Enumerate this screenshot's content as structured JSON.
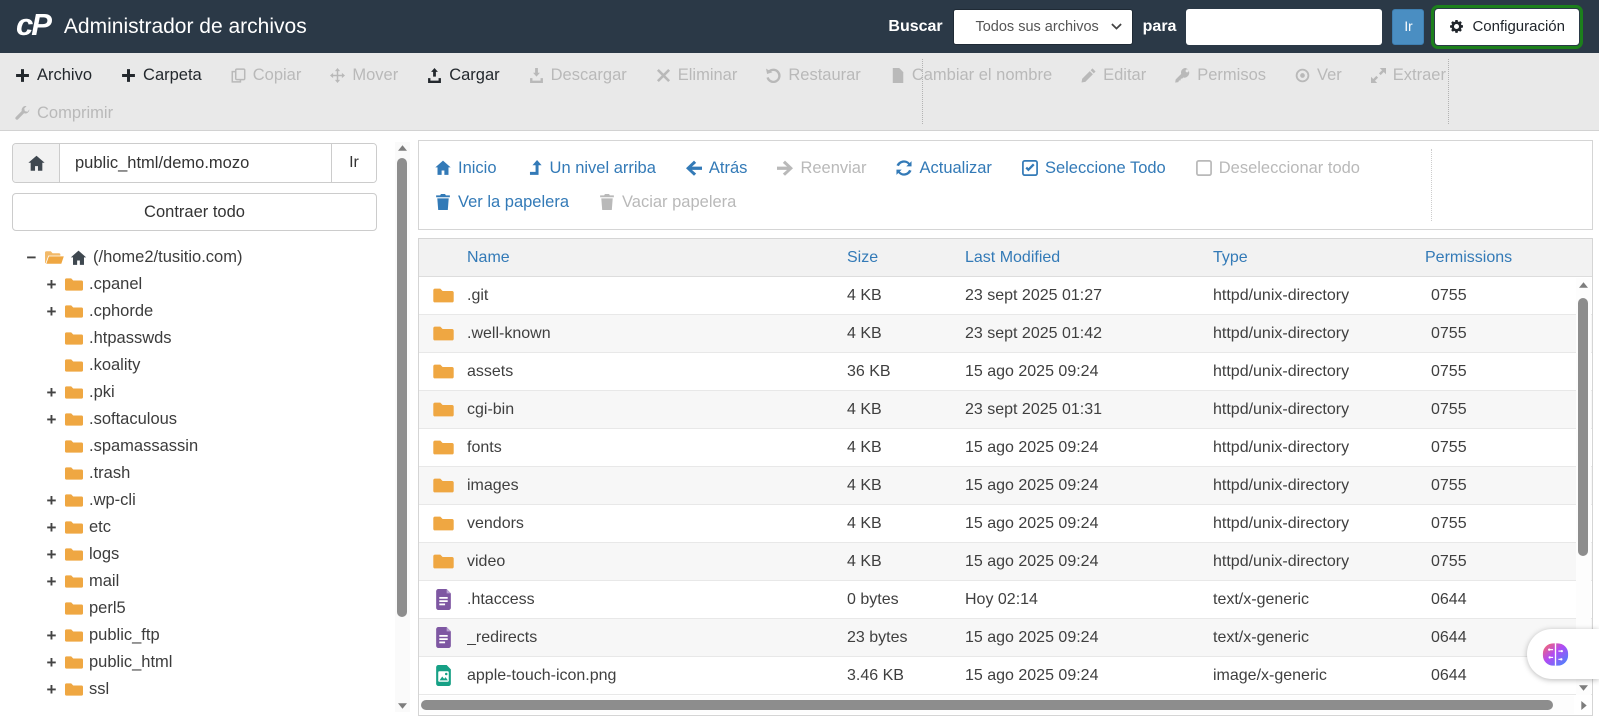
{
  "header": {
    "logo_text": "cP",
    "title": "Administrador de archivos",
    "search_label": "Buscar",
    "search_scope_selected": "Todos sus archivos",
    "search_connector": "para",
    "search_value": "",
    "go_label": "Ir",
    "settings_label": "Configuración"
  },
  "toolbar": {
    "row1": [
      {
        "label": "Archivo",
        "icon": "plus",
        "enabled": true
      },
      {
        "label": "Carpeta",
        "icon": "plus",
        "enabled": true
      },
      {
        "label": "Copiar",
        "icon": "copy",
        "enabled": false
      },
      {
        "label": "Mover",
        "icon": "move",
        "enabled": false
      },
      {
        "label": "Cargar",
        "icon": "upload",
        "enabled": true
      },
      {
        "label": "Descargar",
        "icon": "download",
        "enabled": false
      },
      {
        "label": "Eliminar",
        "icon": "x",
        "enabled": false
      },
      {
        "label": "Restaurar",
        "icon": "undo",
        "enabled": false
      },
      {
        "label": "Cambiar el nombre",
        "icon": "file",
        "enabled": false
      },
      {
        "label": "Editar",
        "icon": "pencil",
        "enabled": false
      },
      {
        "label": "Permisos",
        "icon": "key",
        "enabled": false
      },
      {
        "label": "Ver",
        "icon": "eye",
        "enabled": false
      },
      {
        "label": "Extraer",
        "icon": "extract",
        "enabled": false
      }
    ],
    "row2": [
      {
        "label": "Comprimir",
        "icon": "compress",
        "enabled": false
      }
    ]
  },
  "sidebar": {
    "path_value": "public_html/demo.mozo",
    "go_label": "Ir",
    "collapse_all_label": "Contraer todo",
    "tree": [
      {
        "label": "(/home2/tusitio.com)",
        "expander": "minus",
        "type": "root"
      },
      {
        "label": ".cpanel",
        "expander": "plus"
      },
      {
        "label": ".cphorde",
        "expander": "plus"
      },
      {
        "label": ".htpasswds",
        "expander": ""
      },
      {
        "label": ".koality",
        "expander": ""
      },
      {
        "label": ".pki",
        "expander": "plus"
      },
      {
        "label": ".softaculous",
        "expander": "plus"
      },
      {
        "label": ".spamassassin",
        "expander": ""
      },
      {
        "label": ".trash",
        "expander": ""
      },
      {
        "label": ".wp-cli",
        "expander": "plus"
      },
      {
        "label": "etc",
        "expander": "plus"
      },
      {
        "label": "logs",
        "expander": "plus"
      },
      {
        "label": "mail",
        "expander": "plus"
      },
      {
        "label": "perl5",
        "expander": ""
      },
      {
        "label": "public_ftp",
        "expander": "plus"
      },
      {
        "label": "public_html",
        "expander": "plus"
      },
      {
        "label": "ssl",
        "expander": "plus"
      }
    ]
  },
  "filemanager_nav": {
    "row1": [
      {
        "label": "Inicio",
        "icon": "home",
        "enabled": true
      },
      {
        "label": "Un nivel arriba",
        "icon": "levelup",
        "enabled": true
      },
      {
        "label": "Atrás",
        "icon": "left",
        "enabled": true
      },
      {
        "label": "Reenviar",
        "icon": "right",
        "enabled": false
      },
      {
        "label": "Actualizar",
        "icon": "refresh",
        "enabled": true
      },
      {
        "label": "Seleccione Todo",
        "icon": "check-box",
        "enabled": true
      },
      {
        "label": "Deseleccionar todo",
        "icon": "box",
        "enabled": false
      }
    ],
    "row2": [
      {
        "label": "Ver la papelera",
        "icon": "trash",
        "enabled": true
      },
      {
        "label": "Vaciar papelera",
        "icon": "trash",
        "enabled": false
      }
    ]
  },
  "table": {
    "columns": [
      "Name",
      "Size",
      "Last Modified",
      "Type",
      "Permissions"
    ],
    "rows": [
      {
        "name": ".git",
        "icon": "folder",
        "size": "4 KB",
        "modified": "23 sept 2025 01:27",
        "type": "httpd/unix-directory",
        "perms": "0755"
      },
      {
        "name": ".well-known",
        "icon": "folder",
        "size": "4 KB",
        "modified": "23 sept 2025 01:42",
        "type": "httpd/unix-directory",
        "perms": "0755"
      },
      {
        "name": "assets",
        "icon": "folder",
        "size": "36 KB",
        "modified": "15 ago 2025 09:24",
        "type": "httpd/unix-directory",
        "perms": "0755"
      },
      {
        "name": "cgi-bin",
        "icon": "folder",
        "size": "4 KB",
        "modified": "23 sept 2025 01:31",
        "type": "httpd/unix-directory",
        "perms": "0755"
      },
      {
        "name": "fonts",
        "icon": "folder",
        "size": "4 KB",
        "modified": "15 ago 2025 09:24",
        "type": "httpd/unix-directory",
        "perms": "0755"
      },
      {
        "name": "images",
        "icon": "folder",
        "size": "4 KB",
        "modified": "15 ago 2025 09:24",
        "type": "httpd/unix-directory",
        "perms": "0755"
      },
      {
        "name": "vendors",
        "icon": "folder",
        "size": "4 KB",
        "modified": "15 ago 2025 09:24",
        "type": "httpd/unix-directory",
        "perms": "0755"
      },
      {
        "name": "video",
        "icon": "folder",
        "size": "4 KB",
        "modified": "15 ago 2025 09:24",
        "type": "httpd/unix-directory",
        "perms": "0755"
      },
      {
        "name": ".htaccess",
        "icon": "file-text",
        "size": "0 bytes",
        "modified": "Hoy 02:14",
        "type": "text/x-generic",
        "perms": "0644"
      },
      {
        "name": "_redirects",
        "icon": "file-text",
        "size": "23 bytes",
        "modified": "15 ago 2025 09:24",
        "type": "text/x-generic",
        "perms": "0644"
      },
      {
        "name": "apple-touch-icon.png",
        "icon": "file-image",
        "size": "3.46 KB",
        "modified": "15 ago 2025 09:24",
        "type": "image/x-generic",
        "perms": "0644"
      }
    ]
  },
  "colors": {
    "topbar_bg": "#2b3947",
    "accent_blue": "#337ab7",
    "folder_orange": "#efa742",
    "doc_purple": "#7e57a2",
    "image_teal": "#16a085",
    "go_button_blue": "#4a8ec2",
    "settings_outline_green": "#1c801c",
    "disabled_gray": "#b9b9b9"
  }
}
